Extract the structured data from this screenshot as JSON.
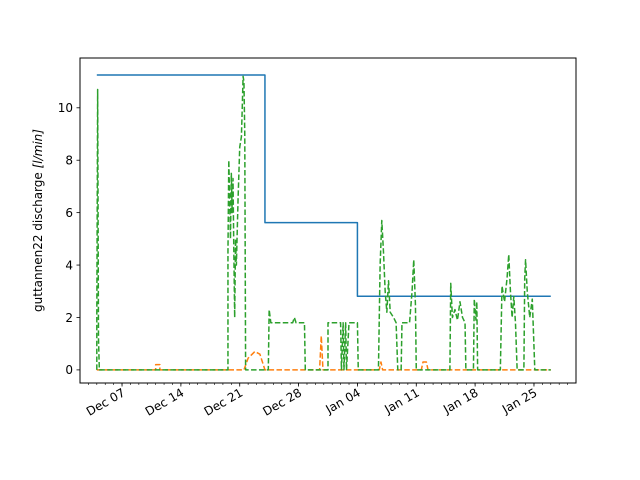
{
  "chart_data": {
    "type": "line",
    "ylabel_prefix": "guttannen22 discharge ",
    "ylabel_unit": "[l/min]",
    "xlim": [
      "2023-12-02",
      "2024-01-30"
    ],
    "ylim": [
      -0.5,
      11.9
    ],
    "grid": false,
    "yticks": [
      0,
      2,
      4,
      6,
      8,
      10
    ],
    "xticks": [
      {
        "date": "2023-12-07",
        "label": "Dec 07"
      },
      {
        "date": "2023-12-14",
        "label": "Dec 14"
      },
      {
        "date": "2023-12-21",
        "label": "Dec 21"
      },
      {
        "date": "2023-12-28",
        "label": "Dec 28"
      },
      {
        "date": "2024-01-04",
        "label": "Jan 04"
      },
      {
        "date": "2024-01-11",
        "label": "Jan 11"
      },
      {
        "date": "2024-01-18",
        "label": "Jan 18"
      },
      {
        "date": "2024-01-25",
        "label": "Jan 25"
      }
    ],
    "series": [
      {
        "color": "#1f77b4",
        "style": "solid",
        "points": [
          [
            "2023-12-04",
            11.25
          ],
          [
            "2023-12-24",
            11.25
          ],
          [
            "2023-12-24",
            5.62
          ],
          [
            "2024-01-04",
            5.62
          ],
          [
            "2024-01-04",
            2.81
          ],
          [
            "2024-01-27",
            2.81
          ]
        ]
      },
      {
        "color": "#ff7f0e",
        "style": "dashed",
        "points": [
          [
            "2023-12-04",
            0
          ],
          [
            "2023-12-11",
            0
          ],
          [
            "2023-12-11",
            0.2
          ],
          [
            "2023-12-11.5",
            0.2
          ],
          [
            "2023-12-11.5",
            0
          ],
          [
            "2023-12-21.5",
            0
          ],
          [
            "2023-12-22",
            0.45
          ],
          [
            "2023-12-22.8",
            0.7
          ],
          [
            "2023-12-23.4",
            0.6
          ],
          [
            "2023-12-24",
            0
          ],
          [
            "2023-12-30.5",
            0
          ],
          [
            "2023-12-30.7",
            1.3
          ],
          [
            "2023-12-30.9",
            0
          ],
          [
            "2024-01-06.6",
            0
          ],
          [
            "2024-01-06.8",
            0.3
          ],
          [
            "2024-01-07",
            0
          ],
          [
            "2024-01-11.6",
            0
          ],
          [
            "2024-01-11.8",
            0.3
          ],
          [
            "2024-01-12.2",
            0.3
          ],
          [
            "2024-01-12.4",
            0
          ],
          [
            "2024-01-27",
            0
          ]
        ]
      },
      {
        "color": "#2ca02c",
        "style": "dashed",
        "points": [
          [
            "2023-12-04",
            0
          ],
          [
            "2023-12-04",
            2.0
          ],
          [
            "2023-12-04.1",
            10.7
          ],
          [
            "2023-12-04.2",
            1.2
          ],
          [
            "2023-12-04.3",
            0
          ],
          [
            "2023-12-19.6",
            0
          ],
          [
            "2023-12-19.6",
            4.5
          ],
          [
            "2023-12-19.7",
            8.0
          ],
          [
            "2023-12-19.9",
            5.0
          ],
          [
            "2023-12-20.0",
            7.5
          ],
          [
            "2023-12-20.1",
            6.0
          ],
          [
            "2023-12-20.2",
            7.3
          ],
          [
            "2023-12-20.3",
            4.5
          ],
          [
            "2023-12-20.4",
            2.0
          ],
          [
            "2023-12-20.5",
            5.0
          ],
          [
            "2023-12-20.6",
            4.0
          ],
          [
            "2023-12-20.8",
            6.5
          ],
          [
            "2023-12-21.0",
            8.5
          ],
          [
            "2023-12-21.2",
            8.9
          ],
          [
            "2023-12-21.3",
            10.0
          ],
          [
            "2023-12-21.4",
            11.2
          ],
          [
            "2023-12-21.5",
            11.0
          ],
          [
            "2023-12-21.6",
            9.0
          ],
          [
            "2023-12-21.7",
            0
          ],
          [
            "2023-12-24.4",
            0
          ],
          [
            "2023-12-24.5",
            2.3
          ],
          [
            "2023-12-24.7",
            1.8
          ],
          [
            "2023-12-27.3",
            1.8
          ],
          [
            "2023-12-27.5",
            2.0
          ],
          [
            "2023-12-27.7",
            1.8
          ],
          [
            "2023-12-28.7",
            1.8
          ],
          [
            "2023-12-28.8",
            0
          ],
          [
            "2023-12-31.5",
            0
          ],
          [
            "2023-12-31.5",
            1.8
          ],
          [
            "2024-01-02.0",
            1.8
          ],
          [
            "2024-01-02.1",
            0
          ],
          [
            "2024-01-02.3",
            1.8
          ],
          [
            "2024-01-02.4",
            0
          ],
          [
            "2024-01-02.6",
            1.8
          ],
          [
            "2024-01-02.7",
            0
          ],
          [
            "2024-01-03.0",
            1.8
          ],
          [
            "2024-01-04.0",
            1.8
          ],
          [
            "2024-01-04.1",
            0
          ],
          [
            "2024-01-06.5",
            0
          ],
          [
            "2024-01-06.7",
            4.0
          ],
          [
            "2024-01-06.9",
            5.7
          ],
          [
            "2024-01-07.1",
            4.5
          ],
          [
            "2024-01-07.3",
            3.0
          ],
          [
            "2024-01-07.5",
            2.2
          ],
          [
            "2024-01-07.7",
            3.4
          ],
          [
            "2024-01-07.9",
            2.2
          ],
          [
            "2024-01-08.3",
            2.0
          ],
          [
            "2024-01-08.6",
            1.8
          ],
          [
            "2024-01-08.8",
            0
          ],
          [
            "2024-01-09.2",
            0
          ],
          [
            "2024-01-09.3",
            1.8
          ],
          [
            "2024-01-10.2",
            1.8
          ],
          [
            "2024-01-10.5",
            3.0
          ],
          [
            "2024-01-10.7",
            4.2
          ],
          [
            "2024-01-10.9",
            2.5
          ],
          [
            "2024-01-11.0",
            0
          ],
          [
            "2024-01-15.0",
            0
          ],
          [
            "2024-01-15.1",
            3.3
          ],
          [
            "2024-01-15.3",
            2.0
          ],
          [
            "2024-01-15.6",
            2.3
          ],
          [
            "2024-01-15.9",
            1.9
          ],
          [
            "2024-01-16.2",
            2.6
          ],
          [
            "2024-01-16.5",
            2.0
          ],
          [
            "2024-01-16.8",
            1.8
          ],
          [
            "2024-01-16.9",
            0
          ],
          [
            "2024-01-17.8",
            0
          ],
          [
            "2024-01-17.9",
            2.7
          ],
          [
            "2024-01-18.1",
            1.9
          ],
          [
            "2024-01-18.2",
            2.6
          ],
          [
            "2024-01-18.3",
            0
          ],
          [
            "2024-01-21.0",
            0
          ],
          [
            "2024-01-21.2",
            3.2
          ],
          [
            "2024-01-21.5",
            2.6
          ],
          [
            "2024-01-21.8",
            3.5
          ],
          [
            "2024-01-22.0",
            4.4
          ],
          [
            "2024-01-22.2",
            3.0
          ],
          [
            "2024-01-22.4",
            2.0
          ],
          [
            "2024-01-22.6",
            2.8
          ],
          [
            "2024-01-22.8",
            1.8
          ],
          [
            "2024-01-23.0",
            0
          ],
          [
            "2024-01-23.8",
            0
          ],
          [
            "2024-01-23.9",
            3.5
          ],
          [
            "2024-01-24.0",
            4.2
          ],
          [
            "2024-01-24.2",
            3.0
          ],
          [
            "2024-01-24.5",
            2.0
          ],
          [
            "2024-01-24.8",
            2.7
          ],
          [
            "2024-01-25.1",
            0
          ],
          [
            "2024-01-27",
            0
          ]
        ]
      }
    ]
  }
}
